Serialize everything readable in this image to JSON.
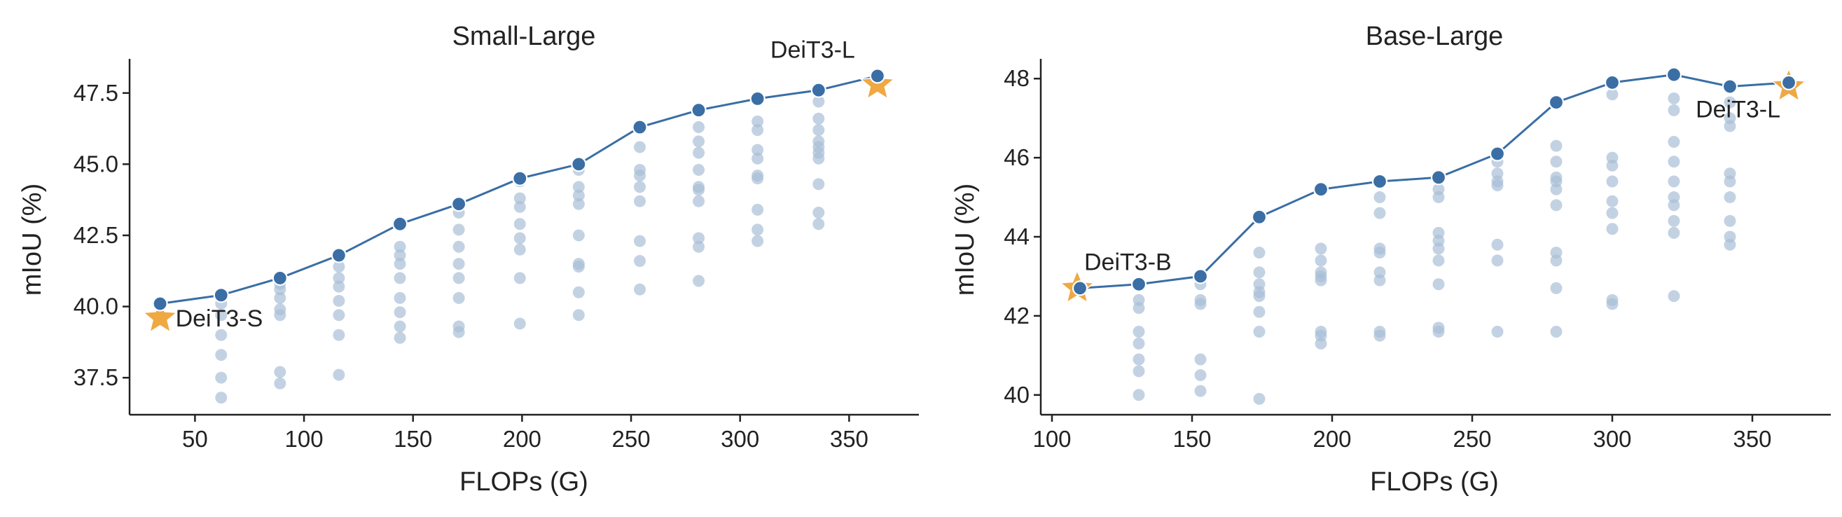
{
  "chart_data": [
    {
      "type": "scatter",
      "title": "Small-Large",
      "xlabel": "FLOPs (G)",
      "ylabel": "mIoU (%)",
      "xlim": [
        20,
        382
      ],
      "ylim": [
        36.2,
        48.7
      ],
      "xticks": [
        50,
        100,
        150,
        200,
        250,
        300,
        350
      ],
      "yticks": [
        37.5,
        40.0,
        42.5,
        45.0,
        47.5
      ],
      "xtick_labels": [
        "50",
        "100",
        "150",
        "200",
        "250",
        "300",
        "350"
      ],
      "ytick_labels": [
        "37.5",
        "40.0",
        "42.5",
        "45.0",
        "47.5"
      ],
      "grid": false,
      "series": [
        {
          "role": "scatter",
          "color": "#a7bcd6",
          "points": [
            [
              62,
              40.1
            ],
            [
              62,
              39.7
            ],
            [
              62,
              39.0
            ],
            [
              62,
              38.3
            ],
            [
              62,
              37.5
            ],
            [
              62,
              36.8
            ],
            [
              89,
              40.8
            ],
            [
              89,
              40.6
            ],
            [
              89,
              40.3
            ],
            [
              89,
              39.9
            ],
            [
              89,
              39.7
            ],
            [
              89,
              37.7
            ],
            [
              89,
              37.3
            ],
            [
              116,
              41.4
            ],
            [
              116,
              41.0
            ],
            [
              116,
              40.7
            ],
            [
              116,
              40.2
            ],
            [
              116,
              39.7
            ],
            [
              116,
              39.0
            ],
            [
              116,
              37.6
            ],
            [
              144,
              42.1
            ],
            [
              144,
              41.8
            ],
            [
              144,
              41.5
            ],
            [
              144,
              41.0
            ],
            [
              144,
              40.3
            ],
            [
              144,
              39.8
            ],
            [
              144,
              39.3
            ],
            [
              144,
              38.9
            ],
            [
              171,
              43.3
            ],
            [
              171,
              42.7
            ],
            [
              171,
              42.1
            ],
            [
              171,
              41.5
            ],
            [
              171,
              41.0
            ],
            [
              171,
              40.3
            ],
            [
              171,
              39.3
            ],
            [
              171,
              39.1
            ],
            [
              199,
              44.4
            ],
            [
              199,
              43.8
            ],
            [
              199,
              43.5
            ],
            [
              199,
              42.9
            ],
            [
              199,
              42.4
            ],
            [
              199,
              42.0
            ],
            [
              199,
              41.0
            ],
            [
              199,
              39.4
            ],
            [
              226,
              44.8
            ],
            [
              226,
              44.2
            ],
            [
              226,
              43.9
            ],
            [
              226,
              43.6
            ],
            [
              226,
              42.5
            ],
            [
              226,
              41.5
            ],
            [
              226,
              41.4
            ],
            [
              226,
              40.5
            ],
            [
              226,
              39.7
            ],
            [
              254,
              45.6
            ],
            [
              254,
              44.8
            ],
            [
              254,
              44.6
            ],
            [
              254,
              44.2
            ],
            [
              254,
              43.7
            ],
            [
              254,
              42.3
            ],
            [
              254,
              41.6
            ],
            [
              254,
              40.6
            ],
            [
              281,
              46.3
            ],
            [
              281,
              45.8
            ],
            [
              281,
              45.4
            ],
            [
              281,
              44.8
            ],
            [
              281,
              44.2
            ],
            [
              281,
              44.1
            ],
            [
              281,
              43.7
            ],
            [
              281,
              42.4
            ],
            [
              281,
              42.1
            ],
            [
              281,
              40.9
            ],
            [
              308,
              46.5
            ],
            [
              308,
              46.2
            ],
            [
              308,
              45.5
            ],
            [
              308,
              45.2
            ],
            [
              308,
              44.6
            ],
            [
              308,
              44.5
            ],
            [
              308,
              43.4
            ],
            [
              308,
              42.7
            ],
            [
              308,
              42.3
            ],
            [
              336,
              47.2
            ],
            [
              336,
              46.6
            ],
            [
              336,
              46.2
            ],
            [
              336,
              45.8
            ],
            [
              336,
              45.6
            ],
            [
              336,
              45.4
            ],
            [
              336,
              45.2
            ],
            [
              336,
              44.3
            ],
            [
              336,
              43.3
            ],
            [
              336,
              42.9
            ]
          ]
        },
        {
          "role": "frontier",
          "color": "#3a6ea5",
          "points": [
            [
              34,
              40.1
            ],
            [
              62,
              40.4
            ],
            [
              89,
              41.0
            ],
            [
              116,
              41.8
            ],
            [
              144,
              42.9
            ],
            [
              171,
              43.6
            ],
            [
              199,
              44.5
            ],
            [
              226,
              45.0
            ],
            [
              254,
              46.3
            ],
            [
              281,
              46.9
            ],
            [
              308,
              47.3
            ],
            [
              336,
              47.6
            ],
            [
              363,
              48.1
            ]
          ]
        }
      ],
      "highlights": [
        {
          "label": "DeiT3-S",
          "x": 34,
          "y": 39.6,
          "label_side": "right"
        },
        {
          "label": "DeiT3-L",
          "x": 363,
          "y": 47.8,
          "label_side": "above-left"
        }
      ],
      "highlight_color": "#f0a843"
    },
    {
      "type": "scatter",
      "title": "Base-Large",
      "xlabel": "FLOPs (G)",
      "ylabel": "mIoU (%)",
      "xlim": [
        96,
        378
      ],
      "ylim": [
        39.5,
        48.5
      ],
      "xticks": [
        100,
        150,
        200,
        250,
        300,
        350
      ],
      "yticks": [
        40,
        42,
        44,
        46,
        48
      ],
      "xtick_labels": [
        "100",
        "150",
        "200",
        "250",
        "300",
        "350"
      ],
      "ytick_labels": [
        "40",
        "42",
        "44",
        "46",
        "48"
      ],
      "grid": false,
      "series": [
        {
          "role": "scatter",
          "color": "#a7bcd6",
          "points": [
            [
              131,
              42.4
            ],
            [
              131,
              42.2
            ],
            [
              131,
              41.6
            ],
            [
              131,
              41.3
            ],
            [
              131,
              40.9
            ],
            [
              131,
              40.6
            ],
            [
              131,
              40.0
            ],
            [
              153,
              42.8
            ],
            [
              153,
              42.4
            ],
            [
              153,
              42.3
            ],
            [
              153,
              40.9
            ],
            [
              153,
              40.5
            ],
            [
              153,
              40.1
            ],
            [
              174,
              43.6
            ],
            [
              174,
              43.1
            ],
            [
              174,
              42.8
            ],
            [
              174,
              42.6
            ],
            [
              174,
              42.5
            ],
            [
              174,
              42.1
            ],
            [
              174,
              41.6
            ],
            [
              174,
              39.9
            ],
            [
              196,
              43.7
            ],
            [
              196,
              43.4
            ],
            [
              196,
              43.1
            ],
            [
              196,
              43.0
            ],
            [
              196,
              42.9
            ],
            [
              196,
              41.6
            ],
            [
              196,
              41.5
            ],
            [
              196,
              41.3
            ],
            [
              217,
              45.0
            ],
            [
              217,
              44.6
            ],
            [
              217,
              43.7
            ],
            [
              217,
              43.6
            ],
            [
              217,
              43.1
            ],
            [
              217,
              42.9
            ],
            [
              217,
              41.6
            ],
            [
              217,
              41.5
            ],
            [
              238,
              45.2
            ],
            [
              238,
              45.0
            ],
            [
              238,
              44.1
            ],
            [
              238,
              43.9
            ],
            [
              238,
              43.7
            ],
            [
              238,
              43.4
            ],
            [
              238,
              42.8
            ],
            [
              238,
              41.7
            ],
            [
              238,
              41.6
            ],
            [
              259,
              45.9
            ],
            [
              259,
              45.6
            ],
            [
              259,
              45.4
            ],
            [
              259,
              45.3
            ],
            [
              259,
              43.8
            ],
            [
              259,
              43.4
            ],
            [
              259,
              41.6
            ],
            [
              280,
              46.3
            ],
            [
              280,
              45.9
            ],
            [
              280,
              45.5
            ],
            [
              280,
              45.4
            ],
            [
              280,
              45.2
            ],
            [
              280,
              44.8
            ],
            [
              280,
              43.6
            ],
            [
              280,
              43.4
            ],
            [
              280,
              42.7
            ],
            [
              280,
              41.6
            ],
            [
              300,
              47.6
            ],
            [
              300,
              46.0
            ],
            [
              300,
              45.8
            ],
            [
              300,
              45.4
            ],
            [
              300,
              44.9
            ],
            [
              300,
              44.6
            ],
            [
              300,
              44.2
            ],
            [
              300,
              42.4
            ],
            [
              300,
              42.3
            ],
            [
              322,
              47.5
            ],
            [
              322,
              47.2
            ],
            [
              322,
              46.4
            ],
            [
              322,
              45.9
            ],
            [
              322,
              45.4
            ],
            [
              322,
              45.0
            ],
            [
              322,
              44.8
            ],
            [
              322,
              44.4
            ],
            [
              322,
              44.1
            ],
            [
              322,
              42.5
            ],
            [
              342,
              47.4
            ],
            [
              342,
              47.0
            ],
            [
              342,
              46.8
            ],
            [
              342,
              45.6
            ],
            [
              342,
              45.4
            ],
            [
              342,
              45.0
            ],
            [
              342,
              44.4
            ],
            [
              342,
              44.0
            ],
            [
              342,
              43.8
            ]
          ]
        },
        {
          "role": "frontier",
          "color": "#3a6ea5",
          "points": [
            [
              110,
              42.7
            ],
            [
              131,
              42.8
            ],
            [
              153,
              43.0
            ],
            [
              174,
              44.5
            ],
            [
              196,
              45.2
            ],
            [
              217,
              45.4
            ],
            [
              238,
              45.5
            ],
            [
              259,
              46.1
            ],
            [
              280,
              47.4
            ],
            [
              300,
              47.9
            ],
            [
              322,
              48.1
            ],
            [
              342,
              47.8
            ],
            [
              363,
              47.9
            ]
          ]
        }
      ],
      "highlights": [
        {
          "label": "DeiT3-B",
          "x": 109,
          "y": 42.7,
          "label_side": "above-right"
        },
        {
          "label": "DeiT3-L",
          "x": 363,
          "y": 47.8,
          "label_side": "below-left"
        }
      ],
      "highlight_color": "#f0a843"
    }
  ]
}
